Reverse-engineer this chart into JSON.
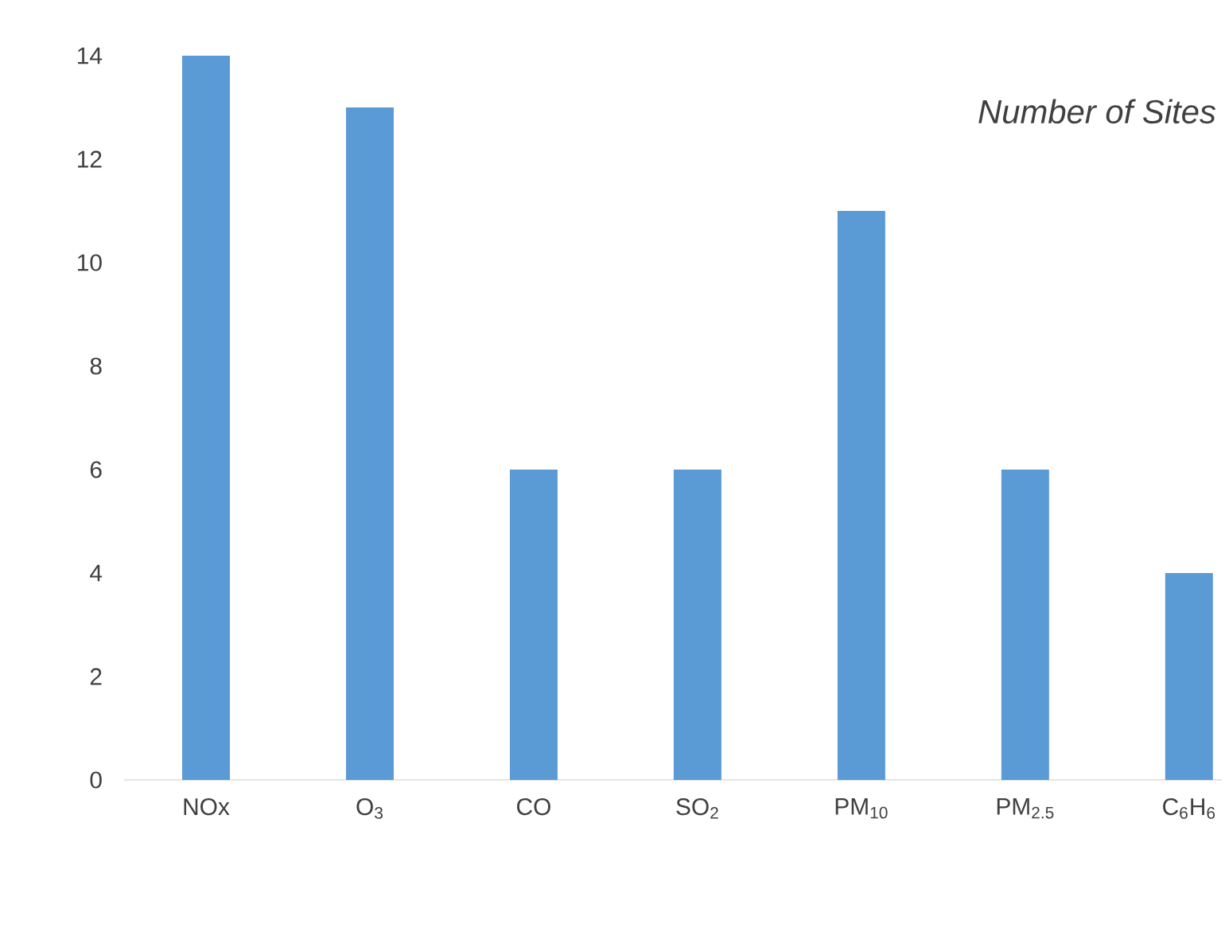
{
  "chart_data": {
    "type": "bar",
    "title": "*Number of Sites*",
    "categories": [
      "NOx",
      "O$_{3}$",
      "CO",
      "SO$_{2}$",
      "PM$_{10}$",
      "PM$_{2.5}$",
      "C$_{6}$H$_{6}$"
    ],
    "values": [
      14,
      13,
      6,
      6,
      11,
      6,
      4
    ],
    "color": "#5b9bd5",
    "ylim": [
      0,
      14
    ],
    "yticks": [
      0,
      2,
      4,
      6,
      8,
      10,
      12,
      14
    ]
  }
}
